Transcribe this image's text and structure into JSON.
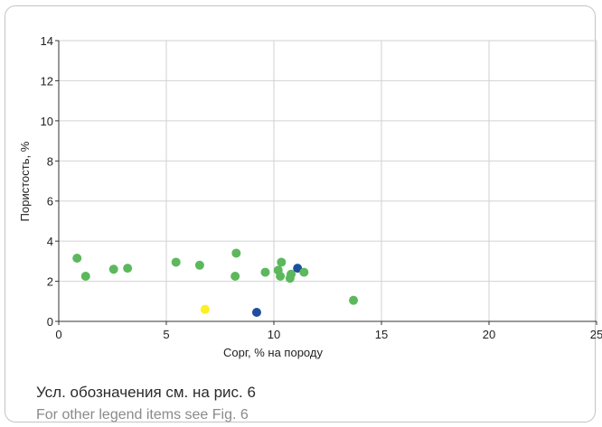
{
  "chart_data": {
    "type": "scatter",
    "title": "",
    "xlabel": "Сорг, % на породу",
    "ylabel": "Пористость, %",
    "xlim": [
      0,
      25
    ],
    "ylim": [
      0,
      14
    ],
    "xticks": [
      0,
      5,
      10,
      15,
      20,
      25
    ],
    "yticks": [
      0,
      2,
      4,
      6,
      8,
      10,
      12,
      14
    ],
    "grid": true,
    "points": [
      {
        "x": 0.85,
        "y": 3.15,
        "color": "#5cb85c"
      },
      {
        "x": 1.25,
        "y": 2.25,
        "color": "#5cb85c"
      },
      {
        "x": 2.55,
        "y": 2.6,
        "color": "#5cb85c"
      },
      {
        "x": 3.2,
        "y": 2.65,
        "color": "#5cb85c"
      },
      {
        "x": 5.45,
        "y": 2.95,
        "color": "#5cb85c"
      },
      {
        "x": 6.55,
        "y": 2.8,
        "color": "#5cb85c"
      },
      {
        "x": 6.8,
        "y": 0.6,
        "color": "#ffee22"
      },
      {
        "x": 8.2,
        "y": 2.25,
        "color": "#5cb85c"
      },
      {
        "x": 8.25,
        "y": 3.4,
        "color": "#5cb85c"
      },
      {
        "x": 9.2,
        "y": 0.45,
        "color": "#1f4e9c"
      },
      {
        "x": 9.6,
        "y": 2.45,
        "color": "#5cb85c"
      },
      {
        "x": 10.2,
        "y": 2.55,
        "color": "#5cb85c"
      },
      {
        "x": 10.3,
        "y": 2.25,
        "color": "#5cb85c"
      },
      {
        "x": 10.35,
        "y": 2.95,
        "color": "#5cb85c"
      },
      {
        "x": 10.75,
        "y": 2.15,
        "color": "#5cb85c"
      },
      {
        "x": 10.8,
        "y": 2.35,
        "color": "#5cb85c"
      },
      {
        "x": 11.1,
        "y": 2.65,
        "color": "#1f4e9c"
      },
      {
        "x": 11.4,
        "y": 2.45,
        "color": "#5cb85c"
      },
      {
        "x": 13.7,
        "y": 1.05,
        "color": "#5cb85c"
      }
    ]
  },
  "captions": {
    "ru": "Усл. обозначения см. на рис. 6",
    "en": "For other legend items see Fig. 6"
  }
}
